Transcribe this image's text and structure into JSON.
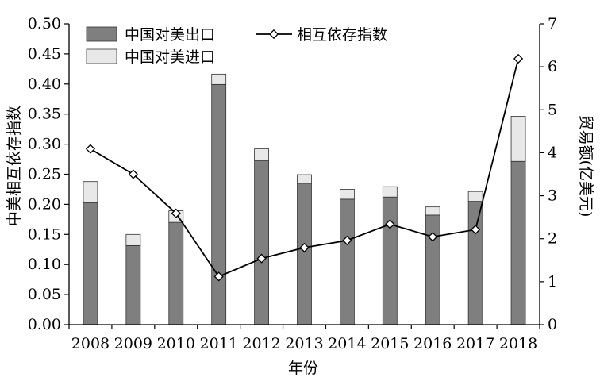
{
  "chart_data": {
    "type": "bar+line",
    "categories": [
      "2008",
      "2009",
      "2010",
      "2011",
      "2012",
      "2013",
      "2014",
      "2015",
      "2016",
      "2017",
      "2018"
    ],
    "xlabel": "年份",
    "ylabel_left": "中美相互依存指数",
    "ylabel_right": "贸易额(亿美元)",
    "ylim_left": [
      0,
      0.5
    ],
    "ylim_right": [
      0,
      7
    ],
    "left_ticks": [
      "0.00",
      "0.05",
      "0.10",
      "0.15",
      "0.20",
      "0.25",
      "0.30",
      "0.35",
      "0.40",
      "0.45",
      "0.50"
    ],
    "right_ticks": [
      "0",
      "1",
      "2",
      "3",
      "4",
      "5",
      "6",
      "7"
    ],
    "grid": false,
    "legend_position": "top-left",
    "series": [
      {
        "name": "中国对美出口",
        "kind": "bar",
        "axis": "right",
        "color": "#7f7f7f",
        "values": [
          2.84,
          1.84,
          2.38,
          5.59,
          3.82,
          3.29,
          2.92,
          2.97,
          2.55,
          2.87,
          3.8
        ]
      },
      {
        "name": "中国对美进口",
        "kind": "bar-stacked",
        "axis": "right",
        "color": "#e8e8e8",
        "values": [
          0.49,
          0.26,
          0.27,
          0.24,
          0.27,
          0.2,
          0.23,
          0.24,
          0.19,
          0.23,
          1.05
        ]
      },
      {
        "name": "相互依存指数",
        "kind": "line",
        "axis": "left",
        "color": "#000000",
        "marker": "diamond",
        "values": [
          0.292,
          0.25,
          0.185,
          0.08,
          0.11,
          0.128,
          0.14,
          0.167,
          0.146,
          0.158,
          0.442
        ]
      }
    ]
  }
}
